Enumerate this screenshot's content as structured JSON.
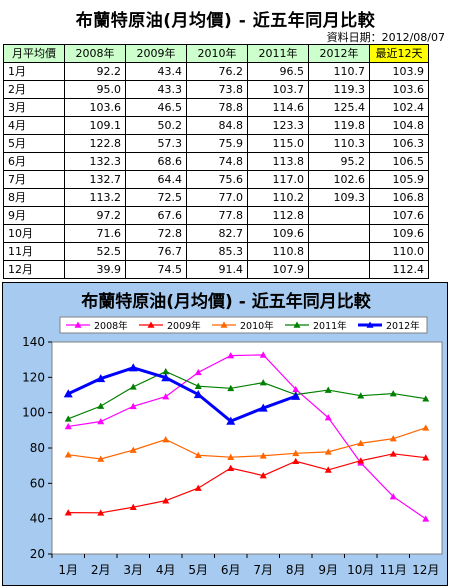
{
  "header": {
    "title": "布蘭特原油(月均價) - 近五年同月比較",
    "date_label": "資料日期：",
    "date_value": "2012/08/07"
  },
  "table": {
    "columns": [
      "月平均價",
      "2008年",
      "2009年",
      "2010年",
      "2011年",
      "2012年",
      "最近12天"
    ],
    "rows": [
      [
        "1月",
        "92.2",
        "43.4",
        "76.2",
        "96.5",
        "110.7",
        "103.9"
      ],
      [
        "2月",
        "95.0",
        "43.3",
        "73.8",
        "103.7",
        "119.3",
        "103.6"
      ],
      [
        "3月",
        "103.6",
        "46.5",
        "78.8",
        "114.6",
        "125.4",
        "102.4"
      ],
      [
        "4月",
        "109.1",
        "50.2",
        "84.8",
        "123.3",
        "119.8",
        "104.8"
      ],
      [
        "5月",
        "122.8",
        "57.3",
        "75.9",
        "115.0",
        "110.3",
        "106.3"
      ],
      [
        "6月",
        "132.3",
        "68.6",
        "74.8",
        "113.8",
        "95.2",
        "106.5"
      ],
      [
        "7月",
        "132.7",
        "64.4",
        "75.6",
        "117.0",
        "102.6",
        "105.9"
      ],
      [
        "8月",
        "113.2",
        "72.5",
        "77.0",
        "110.2",
        "109.3",
        "106.8"
      ],
      [
        "9月",
        "97.2",
        "67.6",
        "77.8",
        "112.8",
        "",
        "107.6"
      ],
      [
        "10月",
        "71.6",
        "72.8",
        "82.7",
        "109.6",
        "",
        "109.6"
      ],
      [
        "11月",
        "52.5",
        "76.7",
        "85.3",
        "110.8",
        "",
        "110.0"
      ],
      [
        "12月",
        "39.9",
        "74.5",
        "91.4",
        "107.9",
        "",
        "112.4"
      ]
    ]
  },
  "chart_data": {
    "type": "line",
    "title": "布蘭特原油(月均價) - 近五年同月比較",
    "categories": [
      "1月",
      "2月",
      "3月",
      "4月",
      "5月",
      "6月",
      "7月",
      "8月",
      "9月",
      "10月",
      "11月",
      "12月"
    ],
    "ylim": [
      20,
      140
    ],
    "yticks": [
      "20",
      "40",
      "60",
      "80",
      "100",
      "120",
      "140"
    ],
    "legend_position": "top",
    "series": [
      {
        "name": "2008年",
        "color": "#ff00ff",
        "marker": "triangle",
        "bold": false,
        "values": [
          92.2,
          95.0,
          103.6,
          109.1,
          122.8,
          132.3,
          132.7,
          113.2,
          97.2,
          71.6,
          52.5,
          39.9
        ]
      },
      {
        "name": "2009年",
        "color": "#ff0000",
        "marker": "triangle",
        "bold": false,
        "values": [
          43.4,
          43.3,
          46.5,
          50.2,
          57.3,
          68.6,
          64.4,
          72.5,
          67.6,
          72.8,
          76.7,
          74.5
        ]
      },
      {
        "name": "2010年",
        "color": "#ff6600",
        "marker": "triangle",
        "bold": false,
        "values": [
          76.2,
          73.8,
          78.8,
          84.8,
          75.9,
          74.8,
          75.6,
          77.0,
          77.8,
          82.7,
          85.3,
          91.4
        ]
      },
      {
        "name": "2011年",
        "color": "#008000",
        "marker": "triangle",
        "bold": false,
        "values": [
          96.5,
          103.7,
          114.6,
          123.3,
          115.0,
          113.8,
          117.0,
          110.2,
          112.8,
          109.6,
          110.8,
          107.9
        ]
      },
      {
        "name": "2012年",
        "color": "#0000ff",
        "marker": "triangle",
        "bold": true,
        "values": [
          110.7,
          119.3,
          125.4,
          119.8,
          110.3,
          95.2,
          102.6,
          109.3,
          null,
          null,
          null,
          null
        ]
      }
    ]
  }
}
